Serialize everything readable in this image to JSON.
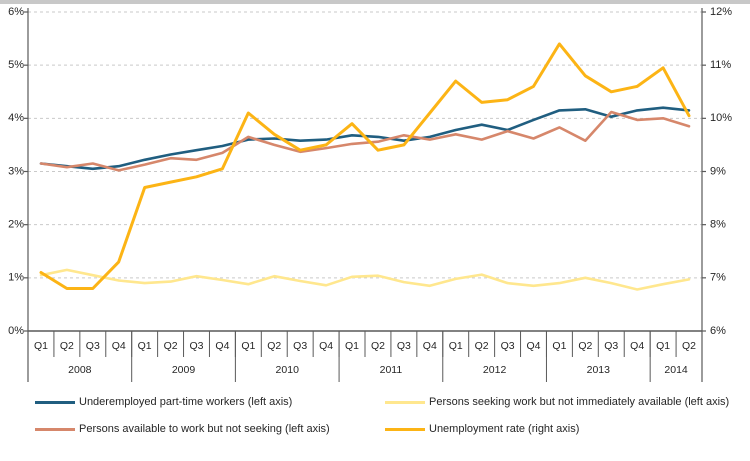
{
  "page": {
    "background": "#ffffff",
    "top_strip_color": "#c8c8c8",
    "axis_line_color": "#595959",
    "gridline_color": "#c9c9c9",
    "text_color": "#262626"
  },
  "chart_data": {
    "type": "line",
    "title": "",
    "xlabel": "",
    "ylabel_left": "",
    "ylabel_right": "",
    "grid": "horizontal dashed",
    "legend_position": "bottom",
    "quarters": [
      "Q1",
      "Q2",
      "Q3",
      "Q4",
      "Q1",
      "Q2",
      "Q3",
      "Q4",
      "Q1",
      "Q2",
      "Q3",
      "Q4",
      "Q1",
      "Q2",
      "Q3",
      "Q4",
      "Q1",
      "Q2",
      "Q3",
      "Q4",
      "Q1",
      "Q2",
      "Q3",
      "Q4",
      "Q1",
      "Q2"
    ],
    "year_groups": [
      {
        "label": "2008",
        "quarters": 4
      },
      {
        "label": "2009",
        "quarters": 4
      },
      {
        "label": "2010",
        "quarters": 4
      },
      {
        "label": "2011",
        "quarters": 4
      },
      {
        "label": "2012",
        "quarters": 4
      },
      {
        "label": "2013",
        "quarters": 4
      },
      {
        "label": "2014",
        "quarters": 2
      }
    ],
    "axes": {
      "left": {
        "min": 0,
        "max": 6,
        "tick_labels": [
          "6%",
          "5%",
          "4%",
          "3%",
          "2%",
          "1%",
          "0%"
        ]
      },
      "right": {
        "min": 6,
        "max": 12,
        "tick_labels": [
          "12%",
          "11%",
          "10%",
          "9%",
          "8%",
          "7%",
          "6%"
        ]
      }
    },
    "series": [
      {
        "name": "Underemployed part-time workers (left axis)",
        "axis": "left",
        "color": "#205E80",
        "width": 2.6,
        "values": [
          3.15,
          3.1,
          3.05,
          3.1,
          3.22,
          3.32,
          3.4,
          3.48,
          3.6,
          3.62,
          3.58,
          3.6,
          3.68,
          3.65,
          3.58,
          3.65,
          3.78,
          3.88,
          3.78,
          3.97,
          4.15,
          4.17,
          4.03,
          4.15,
          4.2,
          4.15
        ]
      },
      {
        "name": "Persons seeking work but not immediately available (left axis)",
        "axis": "left",
        "color": "#FFE78E",
        "width": 2.6,
        "values": [
          1.05,
          1.15,
          1.05,
          0.95,
          0.9,
          0.93,
          1.03,
          0.96,
          0.88,
          1.03,
          0.94,
          0.86,
          1.02,
          1.04,
          0.92,
          0.85,
          0.98,
          1.06,
          0.9,
          0.85,
          0.9,
          1.0,
          0.9,
          0.78,
          0.88,
          0.97
        ]
      },
      {
        "name": "Persons available to work but not seeking (left axis)",
        "axis": "left",
        "color": "#D6876B",
        "width": 2.6,
        "values": [
          3.15,
          3.08,
          3.15,
          3.02,
          3.13,
          3.25,
          3.22,
          3.35,
          3.65,
          3.5,
          3.37,
          3.44,
          3.52,
          3.56,
          3.68,
          3.6,
          3.7,
          3.6,
          3.76,
          3.62,
          3.83,
          3.58,
          4.12,
          3.97,
          4.0,
          3.85
        ]
      },
      {
        "name": "Unemployment rate (right axis)",
        "axis": "right",
        "color": "#FCB415",
        "width": 3,
        "values": [
          7.1,
          6.8,
          6.8,
          7.3,
          8.7,
          8.8,
          8.9,
          9.05,
          10.1,
          9.7,
          9.4,
          9.5,
          9.9,
          9.4,
          9.5,
          10.1,
          10.7,
          10.3,
          10.35,
          10.6,
          11.4,
          10.8,
          10.5,
          10.6,
          10.95,
          10.05
        ]
      }
    ]
  },
  "legend": {
    "order": [
      0,
      1,
      2,
      3
    ]
  }
}
